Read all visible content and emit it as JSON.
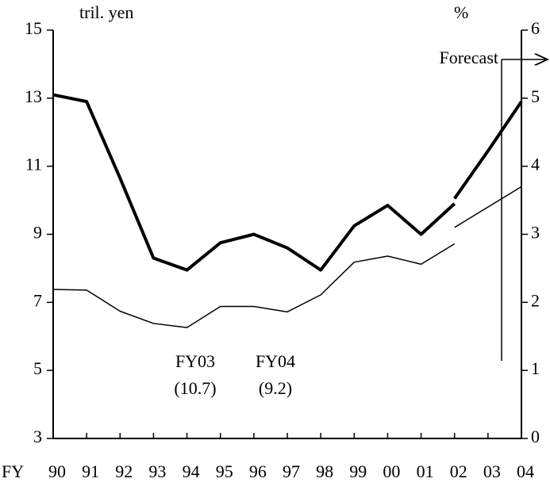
{
  "chart_data": {
    "type": "line",
    "y_label": "tril. yen",
    "y2_label": "%",
    "x_prefix": "FY",
    "categories": [
      "90",
      "91",
      "92",
      "93",
      "94",
      "95",
      "96",
      "97",
      "98",
      "99",
      "00",
      "01",
      "02",
      "03",
      "04"
    ],
    "series": [
      {
        "color": "#000000",
        "width": 4,
        "values": [
          13.1,
          12.9,
          10.65,
          8.3,
          7.95,
          8.75,
          9.0,
          8.6,
          7.95,
          9.25,
          9.85,
          9.0,
          9.9,
          null,
          null
        ]
      },
      {
        "color": "#000000",
        "width": 4,
        "values": [
          null,
          null,
          null,
          null,
          null,
          null,
          null,
          null,
          null,
          null,
          null,
          null,
          10.05,
          11.45,
          12.9
        ]
      },
      {
        "color": "#000000",
        "width": 1.5,
        "axis": "y2",
        "values": [
          2.19,
          2.18,
          1.87,
          1.69,
          1.63,
          1.94,
          1.94,
          1.86,
          2.11,
          2.59,
          2.68,
          2.56,
          2.86,
          null,
          null
        ]
      },
      {
        "color": "#000000",
        "width": 1.5,
        "axis": "y2",
        "values": [
          null,
          null,
          null,
          null,
          null,
          null,
          null,
          null,
          null,
          null,
          null,
          null,
          3.1,
          3.4,
          3.7
        ]
      }
    ],
    "ylim": [
      3,
      15
    ],
    "yticks": [
      3,
      5,
      7,
      9,
      11,
      13,
      15
    ],
    "y2lim": [
      0,
      6
    ],
    "y2ticks": [
      0,
      1,
      2,
      3,
      4,
      5,
      6
    ],
    "forecast_label": "Forecast",
    "annotations": [
      "FY03",
      "(10.7)",
      "FY04",
      "(9.2)"
    ]
  }
}
